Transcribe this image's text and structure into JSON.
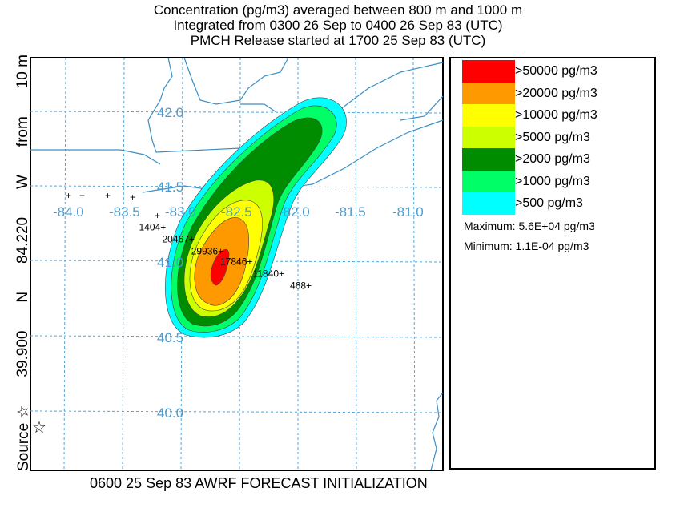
{
  "titles": [
    "Concentration  (pg/m3) averaged between   800 m and  1000 m",
    "Integrated from 0300 26 Sep to 0400 26 Sep 83 (UTC)",
    "PMCH Release started at 1700 25 Sep 83 (UTC)"
  ],
  "side_label": {
    "source": "Source ☆",
    "lat": "39.900",
    "n": "N",
    "lon": "84.220",
    "w": "W",
    "from": "from",
    "height": "10 m"
  },
  "footer": "0600 25 Sep 83 AWRF FORECAST INITIALIZATION",
  "legend": {
    "items": [
      {
        "label": ">50000 pg/m3",
        "color": "#ff0000"
      },
      {
        "label": ">20000 pg/m3",
        "color": "#ff9900"
      },
      {
        "label": ">10000 pg/m3",
        "color": "#ffff00"
      },
      {
        "label": ">5000 pg/m3",
        "color": "#ccff00"
      },
      {
        "label": ">2000 pg/m3",
        "color": "#008c00"
      },
      {
        "label": ">1000 pg/m3",
        "color": "#00ff66"
      },
      {
        "label": ">500 pg/m3",
        "color": "#00ffff"
      }
    ],
    "maximum": "Maximum: 5.6E+04 pg/m3",
    "minimum": "Minimum: 1.1E-04 pg/m3"
  },
  "chart_data": {
    "type": "contour map",
    "lon_ticks": [
      "-84.0",
      "-83.5",
      "-83.0",
      "-82.5",
      "-82.0",
      "-81.5",
      "-81.0"
    ],
    "lat_ticks": [
      "42.0",
      "41.5",
      "41.0",
      "40.5",
      "40.0"
    ],
    "source": {
      "lat": 39.9,
      "lon": -84.22
    },
    "samplers": [
      {
        "label": "1404+",
        "lon": -83.3,
        "lat": 41.26
      },
      {
        "label": "20467+",
        "lon": -83.1,
        "lat": 41.18
      },
      {
        "label": "29936+",
        "lon": -82.85,
        "lat": 41.1
      },
      {
        "label": "17846+",
        "lon": -82.6,
        "lat": 41.03
      },
      {
        "label": "11840+",
        "lon": -82.32,
        "lat": 40.95
      },
      {
        "label": "468+",
        "lon": -82.0,
        "lat": 40.87
      }
    ]
  }
}
